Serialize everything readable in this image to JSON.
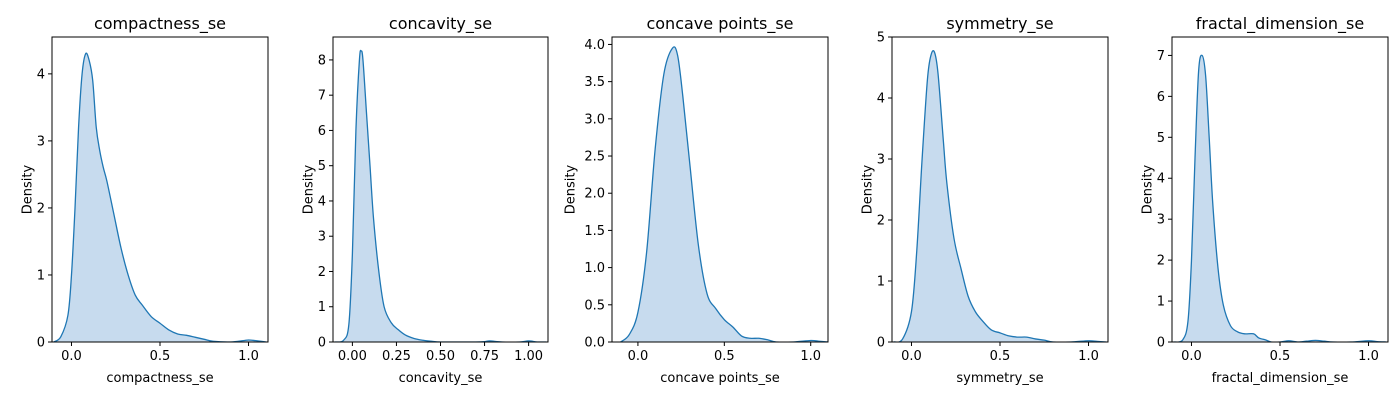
{
  "chart_data": [
    {
      "type": "area",
      "title": "compactness_se",
      "xlabel": "compactness_se",
      "ylabel": "Density",
      "xlim": [
        -0.11,
        1.11
      ],
      "ylim": [
        0,
        4.55
      ],
      "xticks": [
        0.0,
        0.5,
        1.0
      ],
      "xtick_labels": [
        "0.0",
        "0.5",
        "1.0"
      ],
      "yticks": [
        0,
        1,
        2,
        3,
        4
      ],
      "ytick_labels": [
        "0",
        "1",
        "2",
        "3",
        "4"
      ],
      "color": "#1f77b4",
      "fill_color": "#c7dbee",
      "x": [
        -0.1,
        -0.06,
        -0.02,
        0.0,
        0.02,
        0.04,
        0.06,
        0.08,
        0.1,
        0.12,
        0.14,
        0.16,
        0.18,
        0.2,
        0.24,
        0.28,
        0.32,
        0.36,
        0.4,
        0.45,
        0.5,
        0.55,
        0.6,
        0.65,
        0.7,
        0.75,
        0.8,
        0.9,
        0.97,
        1.0,
        1.04,
        1.1
      ],
      "y": [
        0.0,
        0.08,
        0.4,
        1.0,
        2.0,
        3.2,
        4.0,
        4.3,
        4.2,
        3.9,
        3.2,
        2.85,
        2.6,
        2.4,
        1.9,
        1.4,
        1.0,
        0.7,
        0.55,
        0.38,
        0.28,
        0.18,
        0.12,
        0.1,
        0.07,
        0.04,
        0.01,
        0.0,
        0.02,
        0.03,
        0.02,
        0.0
      ]
    },
    {
      "type": "area",
      "title": "concavity_se",
      "xlabel": "concavity_se",
      "ylabel": "Density",
      "xlim": [
        -0.11,
        1.11
      ],
      "ylim": [
        0,
        8.65
      ],
      "xticks": [
        0.0,
        0.25,
        0.5,
        0.75,
        1.0
      ],
      "xtick_labels": [
        "0.00",
        "0.25",
        "0.50",
        "0.75",
        "1.00"
      ],
      "yticks": [
        0,
        1,
        2,
        3,
        4,
        5,
        6,
        7,
        8
      ],
      "ytick_labels": [
        "0",
        "1",
        "2",
        "3",
        "4",
        "5",
        "6",
        "7",
        "8"
      ],
      "color": "#1f77b4",
      "fill_color": "#c7dbee",
      "x": [
        -0.1,
        -0.05,
        -0.02,
        0.0,
        0.02,
        0.04,
        0.05,
        0.06,
        0.08,
        0.1,
        0.12,
        0.15,
        0.18,
        0.22,
        0.26,
        0.3,
        0.35,
        0.4,
        0.45,
        0.5,
        0.6,
        0.7,
        0.75,
        0.78,
        0.85,
        0.95,
        1.0,
        1.05,
        1.1
      ],
      "y": [
        0.0,
        0.05,
        0.5,
        2.5,
        6.0,
        8.0,
        8.25,
        8.0,
        6.5,
        5.0,
        3.5,
        2.0,
        1.0,
        0.55,
        0.35,
        0.2,
        0.1,
        0.05,
        0.02,
        0.0,
        0.0,
        0.0,
        0.01,
        0.03,
        0.0,
        0.0,
        0.03,
        0.0,
        0.0
      ]
    },
    {
      "type": "area",
      "title": "concave points_se",
      "xlabel": "concave points_se",
      "ylabel": "Density",
      "xlim": [
        -0.15,
        1.1
      ],
      "ylim": [
        0,
        4.1
      ],
      "xticks": [
        0.0,
        0.5,
        1.0
      ],
      "xtick_labels": [
        "0.0",
        "0.5",
        "1.0"
      ],
      "yticks": [
        0,
        0.5,
        1.0,
        1.5,
        2.0,
        2.5,
        3.0,
        3.5,
        4.0
      ],
      "ytick_labels": [
        "0.0",
        "0.5",
        "1.0",
        "1.5",
        "2.0",
        "2.5",
        "3.0",
        "3.5",
        "4.0"
      ],
      "color": "#1f77b4",
      "fill_color": "#c7dbee",
      "x": [
        -0.1,
        -0.05,
        0.0,
        0.05,
        0.1,
        0.15,
        0.2,
        0.23,
        0.26,
        0.3,
        0.35,
        0.4,
        0.45,
        0.5,
        0.55,
        0.6,
        0.65,
        0.7,
        0.75,
        0.8,
        0.9,
        1.0,
        1.05,
        1.1
      ],
      "y": [
        0.0,
        0.1,
        0.4,
        1.2,
        2.6,
        3.6,
        3.95,
        3.85,
        3.3,
        2.4,
        1.3,
        0.65,
        0.45,
        0.3,
        0.2,
        0.08,
        0.05,
        0.05,
        0.03,
        0.0,
        0.0,
        0.02,
        0.01,
        0.0
      ]
    },
    {
      "type": "area",
      "title": "symmetry_se",
      "xlabel": "symmetry_se",
      "ylabel": "Density",
      "xlim": [
        -0.11,
        1.11
      ],
      "ylim": [
        0,
        5.0
      ],
      "xticks": [
        0.0,
        0.5,
        1.0
      ],
      "xtick_labels": [
        "0.0",
        "0.5",
        "1.0"
      ],
      "yticks": [
        0,
        1,
        2,
        3,
        4,
        5
      ],
      "ytick_labels": [
        "0",
        "1",
        "2",
        "3",
        "4",
        "5"
      ],
      "color": "#1f77b4",
      "fill_color": "#c7dbee",
      "x": [
        -0.1,
        -0.05,
        0.0,
        0.03,
        0.06,
        0.09,
        0.11,
        0.13,
        0.15,
        0.18,
        0.2,
        0.24,
        0.28,
        0.32,
        0.36,
        0.4,
        0.45,
        0.5,
        0.55,
        0.6,
        0.65,
        0.7,
        0.75,
        0.8,
        0.9,
        1.0,
        1.05,
        1.1
      ],
      "y": [
        0.0,
        0.05,
        0.5,
        1.5,
        3.0,
        4.3,
        4.7,
        4.75,
        4.4,
        3.3,
        2.6,
        1.7,
        1.2,
        0.75,
        0.5,
        0.35,
        0.2,
        0.15,
        0.1,
        0.08,
        0.08,
        0.05,
        0.03,
        0.0,
        0.0,
        0.02,
        0.01,
        0.0
      ]
    },
    {
      "type": "area",
      "title": "fractal_dimension_se",
      "xlabel": "fractal_dimension_se",
      "ylabel": "Density",
      "xlim": [
        -0.11,
        1.11
      ],
      "ylim": [
        0,
        7.45
      ],
      "xticks": [
        0.0,
        0.5,
        1.0
      ],
      "xtick_labels": [
        "0.0",
        "0.5",
        "1.0"
      ],
      "yticks": [
        0,
        1,
        2,
        3,
        4,
        5,
        6,
        7
      ],
      "ytick_labels": [
        "0",
        "1",
        "2",
        "3",
        "4",
        "5",
        "6",
        "7"
      ],
      "color": "#1f77b4",
      "fill_color": "#c7dbee",
      "x": [
        -0.1,
        -0.05,
        -0.02,
        0.0,
        0.02,
        0.04,
        0.06,
        0.08,
        0.1,
        0.12,
        0.15,
        0.18,
        0.22,
        0.26,
        0.3,
        0.35,
        0.38,
        0.42,
        0.45,
        0.5,
        0.55,
        0.6,
        0.65,
        0.7,
        0.75,
        0.8,
        0.9,
        1.0,
        1.05,
        1.1
      ],
      "y": [
        0.0,
        0.05,
        0.5,
        2.0,
        4.5,
        6.6,
        7.0,
        6.5,
        5.0,
        3.4,
        1.8,
        0.9,
        0.4,
        0.25,
        0.2,
        0.2,
        0.1,
        0.05,
        0.0,
        0.0,
        0.03,
        0.0,
        0.02,
        0.04,
        0.02,
        0.0,
        0.0,
        0.03,
        0.01,
        0.0
      ]
    }
  ]
}
